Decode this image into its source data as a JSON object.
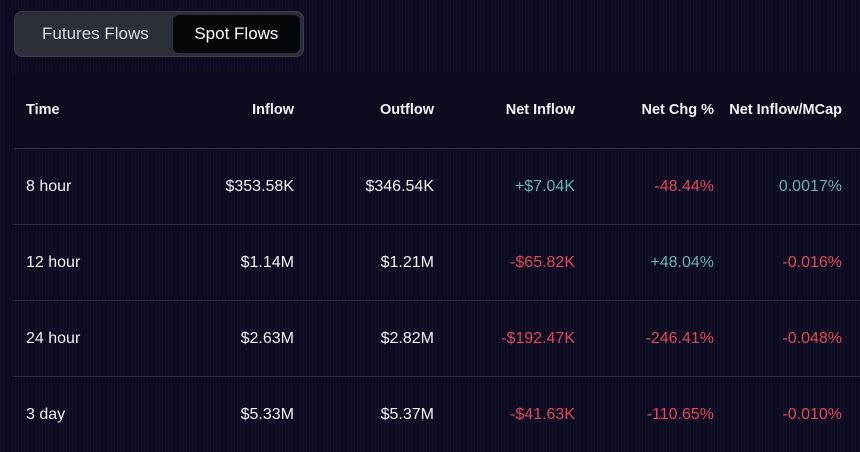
{
  "tabs": [
    {
      "label": "Futures Flows",
      "active": false
    },
    {
      "label": "Spot Flows",
      "active": true
    }
  ],
  "table": {
    "headers": [
      "Time",
      "Inflow",
      "Outflow",
      "Net Inflow",
      "Net Chg %",
      "Net Inflow/MCap"
    ],
    "rows": [
      {
        "time": "8 hour",
        "inflow": "$353.58K",
        "outflow": "$346.54K",
        "net_inflow": "+$7.04K",
        "net_chg": "-48.44%",
        "net_mcap": "0.0017%"
      },
      {
        "time": "12 hour",
        "inflow": "$1.14M",
        "outflow": "$1.21M",
        "net_inflow": "-$65.82K",
        "net_chg": "+48.04%",
        "net_mcap": "-0.016%"
      },
      {
        "time": "24 hour",
        "inflow": "$2.63M",
        "outflow": "$2.82M",
        "net_inflow": "-$192.47K",
        "net_chg": "-246.41%",
        "net_mcap": "-0.048%"
      },
      {
        "time": "3 day",
        "inflow": "$5.33M",
        "outflow": "$5.37M",
        "net_inflow": "-$41.63K",
        "net_chg": "-110.65%",
        "net_mcap": "-0.010%"
      }
    ]
  },
  "colors": {
    "positive": "#5fb8a8",
    "negative": "#e2495a",
    "background": "#0c0b22"
  }
}
